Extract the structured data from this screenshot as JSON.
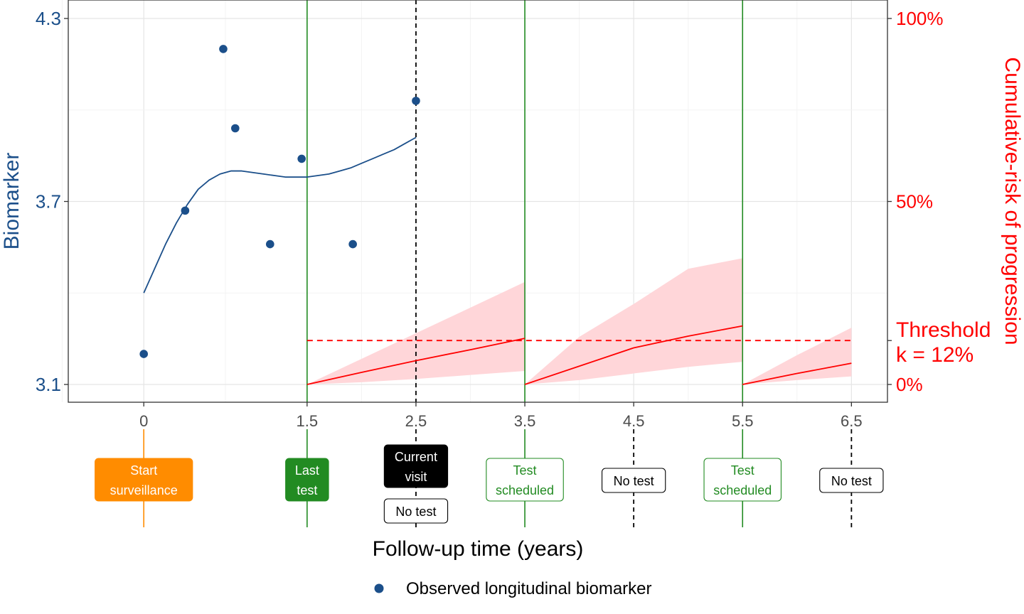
{
  "chart_data": {
    "type": "line",
    "xlabel": "Follow-up time (years)",
    "ylabel_left": "Biomarker",
    "ylabel_right": "Cumulative-risk of progression",
    "xlim": [
      -0.8,
      6.85
    ],
    "ylim_left": [
      3.045,
      4.33
    ],
    "ylim_right_pct": [
      0,
      100
    ],
    "x_ticks": [
      0,
      1.5,
      2.5,
      3.5,
      4.5,
      5.5,
      6.5
    ],
    "x_tick_labels": [
      "0",
      "1.5",
      "2.5",
      "3.5",
      "4.5",
      "5.5",
      "6.5"
    ],
    "y_left_ticks": [
      3.1,
      3.7,
      4.3
    ],
    "y_left_tick_labels": [
      "3.1",
      "3.7",
      "4.3"
    ],
    "y_right_ticks": [
      0,
      50,
      100
    ],
    "y_right_tick_labels": [
      "0%",
      "50%",
      "100%"
    ],
    "observed_points": [
      {
        "x": 0.0,
        "y": 3.2
      },
      {
        "x": 0.38,
        "y": 3.67
      },
      {
        "x": 0.73,
        "y": 4.2
      },
      {
        "x": 0.84,
        "y": 3.94
      },
      {
        "x": 1.16,
        "y": 3.56
      },
      {
        "x": 1.45,
        "y": 3.84
      },
      {
        "x": 1.92,
        "y": 3.56
      },
      {
        "x": 2.5,
        "y": 4.03
      }
    ],
    "fitted_curve": {
      "x": [
        0.0,
        0.1,
        0.2,
        0.3,
        0.4,
        0.5,
        0.6,
        0.7,
        0.8,
        0.9,
        1.0,
        1.1,
        1.2,
        1.3,
        1.4,
        1.5,
        1.6,
        1.7,
        1.8,
        1.9,
        2.0,
        2.1,
        2.2,
        2.3,
        2.4,
        2.5
      ],
      "y": [
        3.4,
        3.48,
        3.56,
        3.63,
        3.69,
        3.74,
        3.77,
        3.79,
        3.8,
        3.8,
        3.795,
        3.79,
        3.785,
        3.78,
        3.78,
        3.78,
        3.785,
        3.79,
        3.8,
        3.81,
        3.825,
        3.84,
        3.855,
        3.87,
        3.89,
        3.91
      ]
    },
    "risk_segments": [
      {
        "x": [
          1.5,
          2.0,
          2.5,
          3.0,
          3.5
        ],
        "mean_pct": [
          0,
          3.3,
          6.5,
          9.5,
          12.6
        ],
        "lower_pct": [
          0,
          0.6,
          1.5,
          2.6,
          3.7
        ],
        "upper_pct": [
          0,
          7,
          14,
          21,
          28
        ]
      },
      {
        "x": [
          3.5,
          4.0,
          4.5,
          5.0,
          5.5
        ],
        "mean_pct": [
          0,
          5,
          10,
          13.2,
          16
        ],
        "lower_pct": [
          0,
          1.2,
          3,
          4.8,
          6.2
        ],
        "upper_pct": [
          0,
          13,
          22,
          31.6,
          34.5
        ]
      },
      {
        "x": [
          5.5,
          6.0,
          6.5
        ],
        "mean_pct": [
          0,
          3,
          5.8
        ],
        "lower_pct": [
          0,
          1.2,
          2.2
        ],
        "upper_pct": [
          0,
          8,
          15.5
        ]
      }
    ],
    "threshold": {
      "pct": 12,
      "x_start": 1.5,
      "x_end": 6.5,
      "label_line1": "Threshold",
      "label_line2": "k = 12%"
    },
    "test_lines_x": [
      1.5,
      3.5,
      5.5
    ],
    "current_visit_x": 2.5,
    "no_test_lines_x": [
      4.5,
      6.5
    ],
    "legend": {
      "label": "Observed longitudinal biomarker",
      "placement": "bottom"
    }
  },
  "timeline_labels": [
    {
      "x": 0,
      "lines": [
        "Start",
        "surveillance"
      ],
      "style": "orange"
    },
    {
      "x": 1.5,
      "lines": [
        "Last",
        "test"
      ],
      "style": "green-filled"
    },
    {
      "x": 2.5,
      "lines": [
        "Current",
        "visit"
      ],
      "style": "black-filled"
    },
    {
      "x": 2.5,
      "lines": [
        "No test"
      ],
      "style": "white",
      "secondary": true
    },
    {
      "x": 3.5,
      "lines": [
        "Test",
        "scheduled"
      ],
      "style": "green-outline"
    },
    {
      "x": 4.5,
      "lines": [
        "No test"
      ],
      "style": "white"
    },
    {
      "x": 5.5,
      "lines": [
        "Test",
        "scheduled"
      ],
      "style": "green-outline"
    },
    {
      "x": 6.5,
      "lines": [
        "No test"
      ],
      "style": "white"
    }
  ],
  "colors": {
    "biomarker": "#1b4f8a",
    "risk": "#ff0000",
    "risk_band": "#ffd6d9",
    "test_line": "#228b22",
    "orange": "#ff8c00",
    "grid_major": "#e5e5e5",
    "grid_minor": "#f3f3f3",
    "tick_text": "#4d4d4d"
  }
}
